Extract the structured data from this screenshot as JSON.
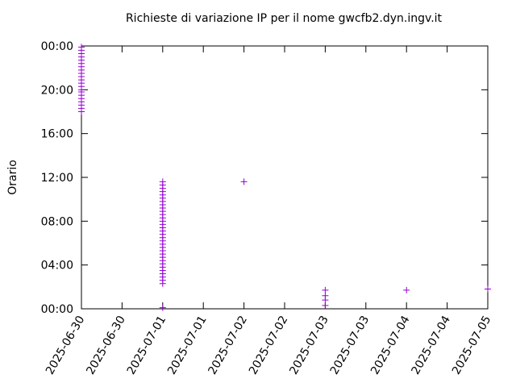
{
  "chart_data": {
    "type": "scatter",
    "title": "Richieste di variazione IP per il nome gwcfb2.dyn.ingv.it",
    "y_label": "Orario",
    "series": [
      {
        "color": "#9400d3",
        "x": [
          "2025-06-30",
          "2025-06-30",
          "2025-06-30",
          "2025-06-30",
          "2025-06-30",
          "2025-06-30",
          "2025-06-30",
          "2025-06-30",
          "2025-06-30",
          "2025-06-30",
          "2025-06-30",
          "2025-06-30",
          "2025-06-30",
          "2025-06-30",
          "2025-06-30",
          "2025-06-30",
          "2025-06-30",
          "2025-06-30",
          "2025-06-30",
          "2025-06-30",
          "2025-06-30",
          "2025-07-01",
          "2025-07-01",
          "2025-07-01",
          "2025-07-01",
          "2025-07-01",
          "2025-07-01",
          "2025-07-01",
          "2025-07-01",
          "2025-07-01",
          "2025-07-01",
          "2025-07-01",
          "2025-07-01",
          "2025-07-01",
          "2025-07-01",
          "2025-07-01",
          "2025-07-01",
          "2025-07-01",
          "2025-07-01",
          "2025-07-01",
          "2025-07-01",
          "2025-07-01",
          "2025-07-01",
          "2025-07-01",
          "2025-07-01",
          "2025-07-01",
          "2025-07-01",
          "2025-07-01",
          "2025-07-01",
          "2025-07-01",
          "2025-07-01",
          "2025-07-01",
          "2025-07-01",
          "2025-07-01",
          "2025-07-02",
          "2025-07-03",
          "2025-07-03",
          "2025-07-03",
          "2025-07-03",
          "2025-07-04",
          "2025-07-05"
        ],
        "values": [
          18.0,
          18.3,
          18.6,
          18.9,
          19.2,
          19.5,
          19.8,
          20.0,
          20.3,
          20.6,
          20.9,
          21.2,
          21.5,
          21.8,
          22.1,
          22.4,
          22.7,
          23.0,
          23.3,
          23.6,
          23.9,
          0.1,
          2.3,
          2.6,
          2.9,
          3.2,
          3.5,
          3.8,
          4.1,
          4.4,
          4.7,
          5.0,
          5.3,
          5.6,
          5.9,
          6.2,
          6.5,
          6.8,
          7.1,
          7.4,
          7.7,
          8.0,
          8.3,
          8.6,
          8.9,
          9.2,
          9.5,
          9.8,
          10.1,
          10.4,
          10.7,
          11.0,
          11.3,
          11.6,
          11.6,
          1.7,
          1.2,
          0.8,
          0.3,
          1.7,
          1.8
        ]
      }
    ],
    "xlim": [
      "2025-06-30",
      "2025-07-05"
    ],
    "xticks": [
      {
        "value": "2025-06-30T00:00",
        "label": "2025-06-30"
      },
      {
        "value": "2025-06-30T12:00",
        "label": "2025-06-30"
      },
      {
        "value": "2025-07-01T00:00",
        "label": "2025-07-01"
      },
      {
        "value": "2025-07-01T12:00",
        "label": "2025-07-01"
      },
      {
        "value": "2025-07-02T00:00",
        "label": "2025-07-02"
      },
      {
        "value": "2025-07-02T12:00",
        "label": "2025-07-02"
      },
      {
        "value": "2025-07-03T00:00",
        "label": "2025-07-03"
      },
      {
        "value": "2025-07-03T12:00",
        "label": "2025-07-03"
      },
      {
        "value": "2025-07-04T00:00",
        "label": "2025-07-04"
      },
      {
        "value": "2025-07-04T12:00",
        "label": "2025-07-04"
      },
      {
        "value": "2025-07-05T00:00",
        "label": "2025-07-05"
      }
    ],
    "ylim": [
      0,
      24
    ],
    "yticks": [
      {
        "value": 0,
        "label": "00:00"
      },
      {
        "value": 4,
        "label": "04:00"
      },
      {
        "value": 8,
        "label": "08:00"
      },
      {
        "value": 12,
        "label": "12:00"
      },
      {
        "value": 16,
        "label": "16:00"
      },
      {
        "value": 20,
        "label": "20:00"
      },
      {
        "value": 24,
        "label": "00:00"
      }
    ]
  }
}
